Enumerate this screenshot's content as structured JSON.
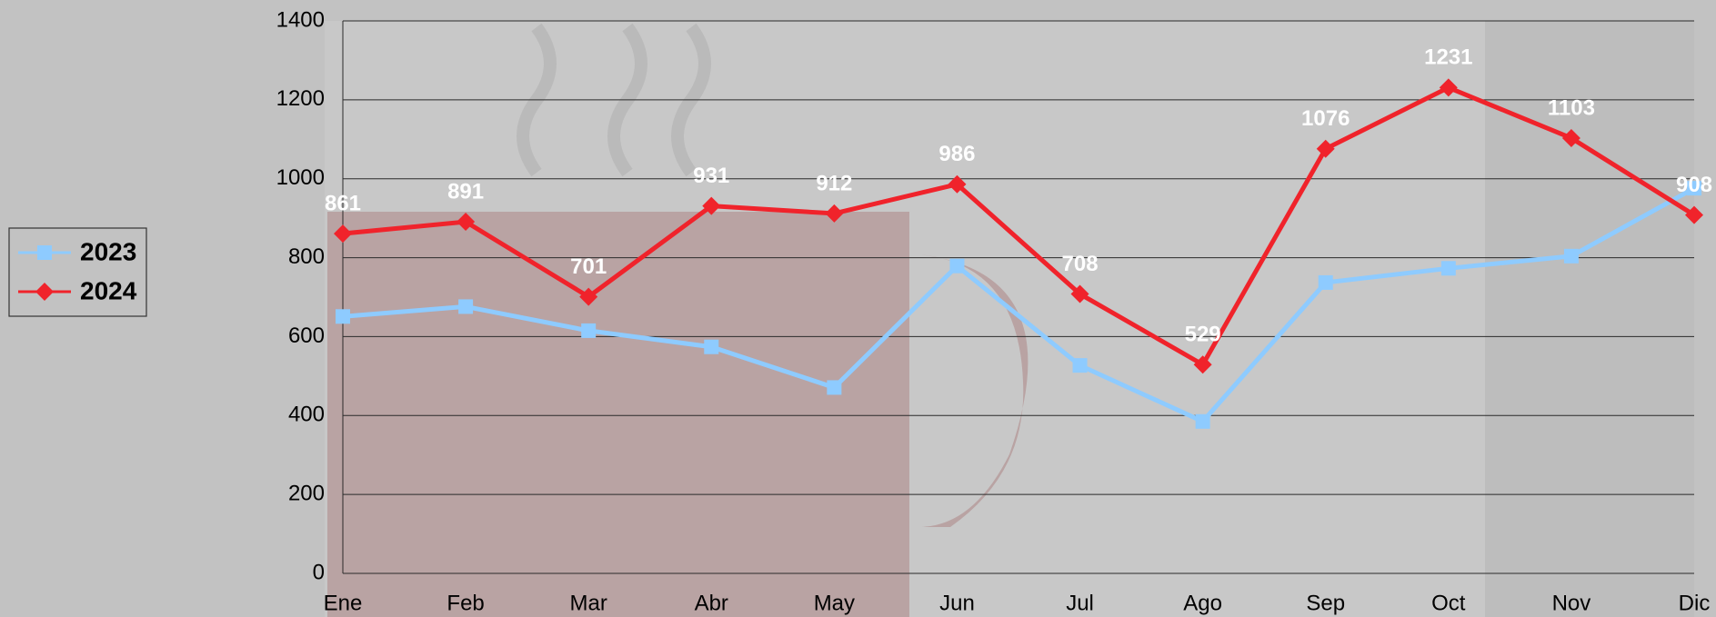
{
  "chart_data": {
    "type": "line",
    "categories": [
      "Ene",
      "Feb",
      "Mar",
      "Abr",
      "May",
      "Jun",
      "Jul",
      "Ago",
      "Sep",
      "Oct",
      "Nov",
      "Dic"
    ],
    "series": [
      {
        "name": "2023",
        "color": "#8ecbff",
        "marker": "square",
        "values": [
          651,
          676,
          615,
          574,
          471,
          779,
          527,
          385,
          737,
          773,
          804,
          976
        ]
      },
      {
        "name": "2024",
        "color": "#f0232b",
        "marker": "diamond",
        "values": [
          861,
          891,
          701,
          931,
          912,
          986,
          708,
          529,
          1076,
          1231,
          1103,
          908
        ],
        "data_labels": true
      }
    ],
    "ylim": [
      0,
      1400
    ],
    "yticks": [
      0,
      200,
      400,
      600,
      800,
      1000,
      1200,
      1400
    ],
    "grid": true,
    "legend": "left"
  }
}
